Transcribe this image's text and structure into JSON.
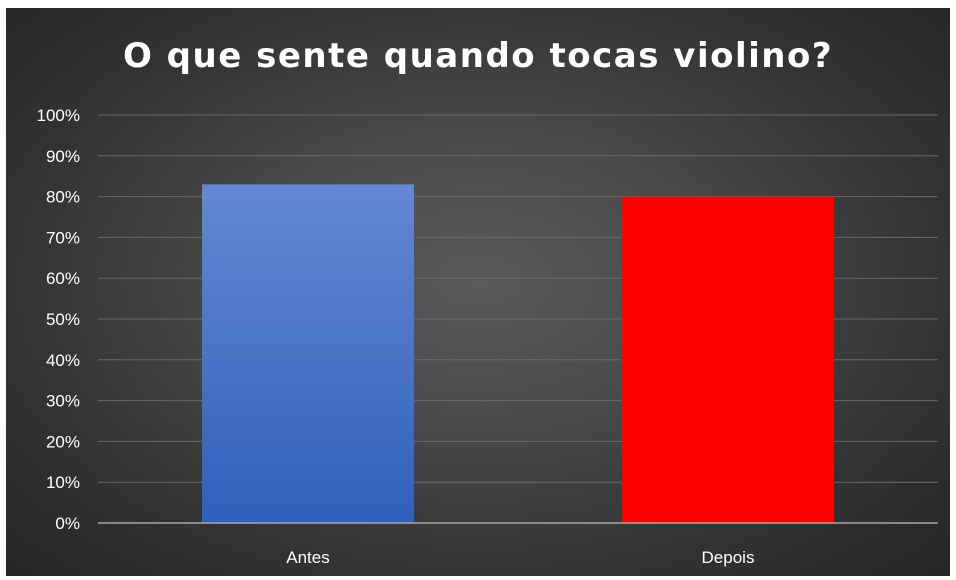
{
  "chart_data": {
    "type": "bar",
    "title": "O que sente quando tocas violino?",
    "categories": [
      "Antes",
      "Depois"
    ],
    "values": [
      0.83,
      0.8
    ],
    "bar_colors": [
      "#4472c4",
      "#ff0000"
    ],
    "ylim": [
      0,
      1
    ],
    "yticks": [
      "0%",
      "10%",
      "20%",
      "30%",
      "40%",
      "50%",
      "60%",
      "70%",
      "80%",
      "90%",
      "100%"
    ],
    "xlabel": "",
    "ylabel": "",
    "grid": true,
    "legend": "none",
    "background": "#404040"
  }
}
